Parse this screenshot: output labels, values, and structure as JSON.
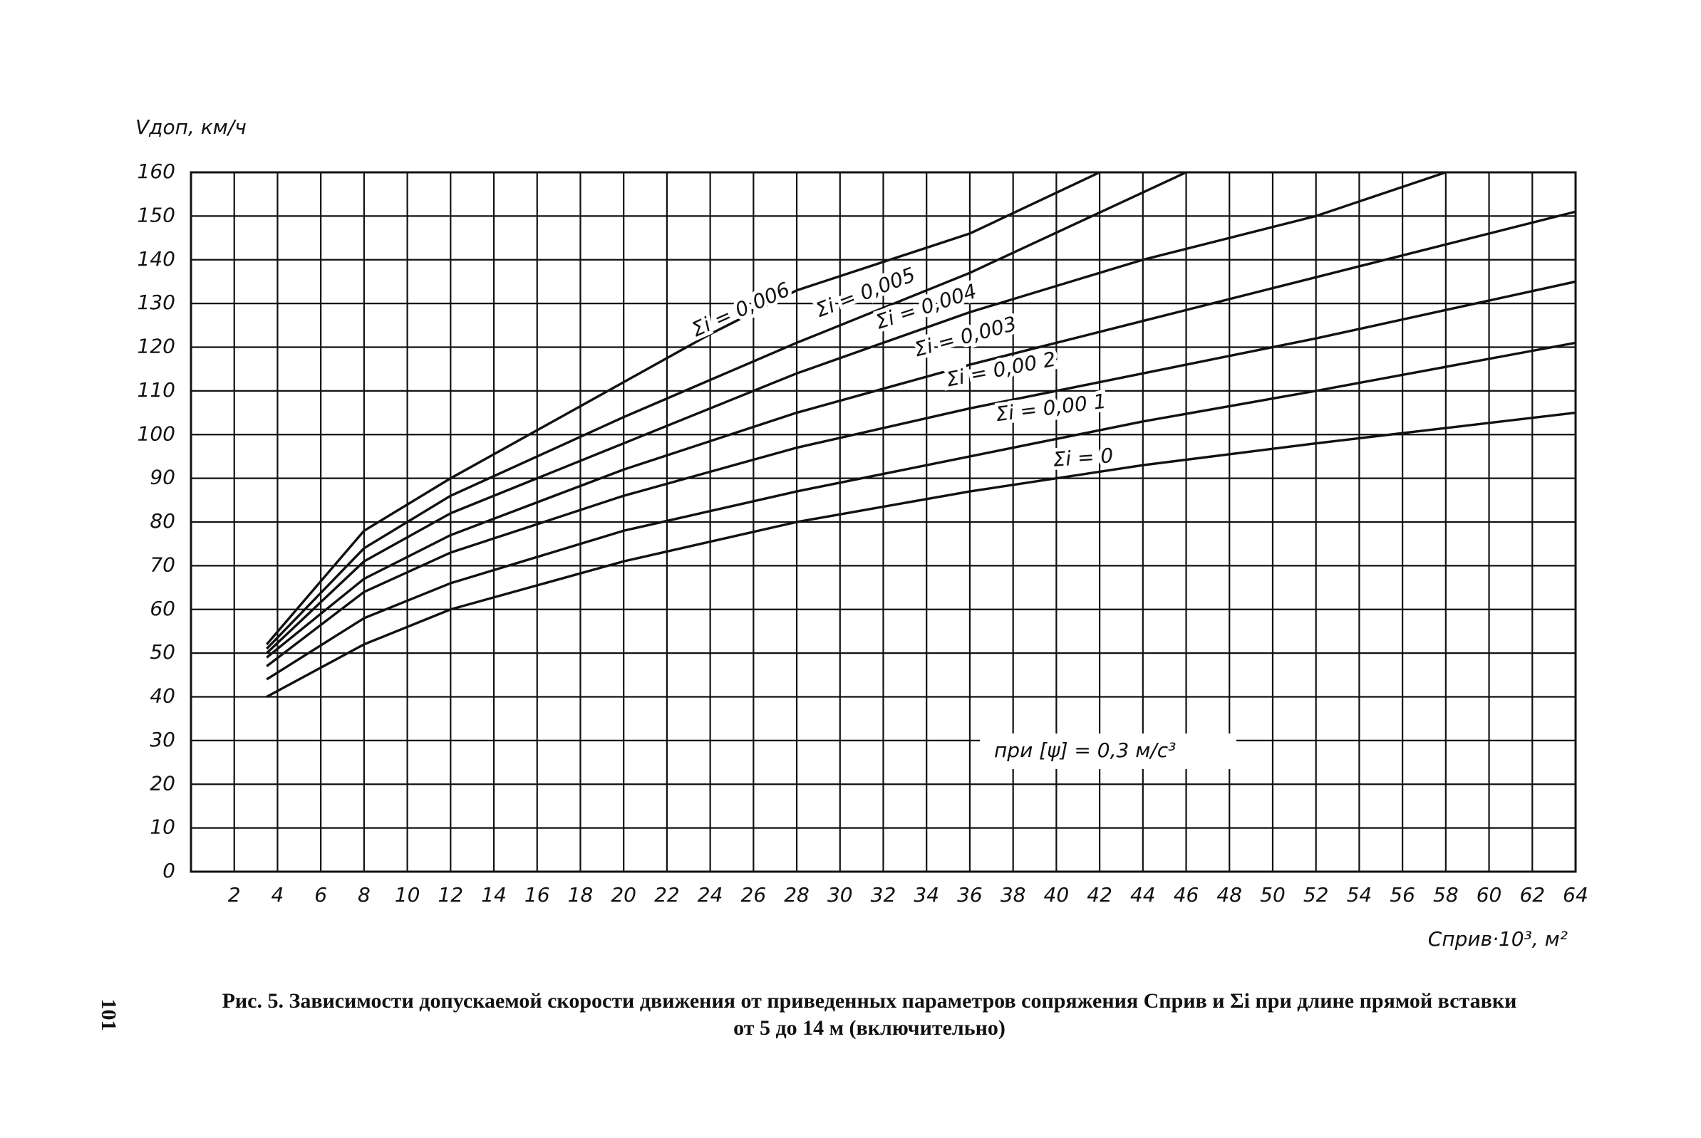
{
  "chart_data": {
    "type": "line",
    "y_label": "Vдоп, км/ч",
    "x_label": "Cприв·10³, м²",
    "annotation": "при [ψ] = 0,3 м/с³",
    "caption_line1": "Рис. 5. Зависимости допускаемой скорости движения от приведенных параметров сопряжения Cприв и Σi при длине прямой вставки",
    "caption_line2": "от 5 до 14 м (включительно)",
    "page_number": "101",
    "xlim": [
      0,
      64
    ],
    "ylim": [
      0,
      160
    ],
    "xticks": [
      2,
      4,
      6,
      8,
      10,
      12,
      14,
      16,
      18,
      20,
      22,
      24,
      26,
      28,
      30,
      32,
      34,
      36,
      38,
      40,
      42,
      44,
      46,
      48,
      50,
      52,
      54,
      56,
      58,
      60,
      62,
      64
    ],
    "yticks": [
      0,
      10,
      20,
      30,
      40,
      50,
      60,
      70,
      80,
      90,
      100,
      110,
      120,
      130,
      140,
      150,
      160
    ],
    "grid": true,
    "series": [
      {
        "name": "Σi = 0,006",
        "color": "#111111",
        "x": [
          3.5,
          8,
          12,
          20,
          24,
          28,
          36,
          42
        ],
        "values": [
          52,
          78,
          90,
          112,
          123,
          133,
          146,
          160
        ]
      },
      {
        "name": "Σi = 0,005",
        "color": "#111111",
        "x": [
          3.5,
          8,
          12,
          20,
          28,
          36,
          46
        ],
        "values": [
          51,
          74,
          86,
          104,
          121,
          137,
          160
        ]
      },
      {
        "name": "Σi = 0,004",
        "color": "#111111",
        "x": [
          3.5,
          8,
          12,
          20,
          28,
          36,
          44,
          52,
          58
        ],
        "values": [
          50,
          71,
          82,
          98,
          114,
          128,
          140,
          150,
          160
        ]
      },
      {
        "name": "Σi = 0,003",
        "color": "#111111",
        "x": [
          3.5,
          8,
          12,
          20,
          28,
          36,
          44,
          52,
          64
        ],
        "values": [
          49,
          67,
          77,
          92,
          105,
          116,
          126,
          136,
          151
        ]
      },
      {
        "name": "Σi = 0,00 2",
        "color": "#111111",
        "x": [
          3.5,
          8,
          12,
          20,
          28,
          36,
          44,
          52,
          64
        ],
        "values": [
          47,
          64,
          73,
          86,
          97,
          106,
          114,
          122,
          135
        ]
      },
      {
        "name": "Σi = 0,00 1",
        "color": "#111111",
        "x": [
          3.5,
          8,
          12,
          20,
          28,
          36,
          44,
          52,
          64
        ],
        "values": [
          44,
          58,
          66,
          78,
          87,
          95,
          103,
          110,
          121
        ]
      },
      {
        "name": "Σi = 0",
        "color": "#111111",
        "x": [
          3.5,
          8,
          12,
          20,
          28,
          36,
          44,
          52,
          64
        ],
        "values": [
          40,
          52,
          60,
          71,
          80,
          87,
          93,
          98,
          105
        ]
      }
    ]
  }
}
